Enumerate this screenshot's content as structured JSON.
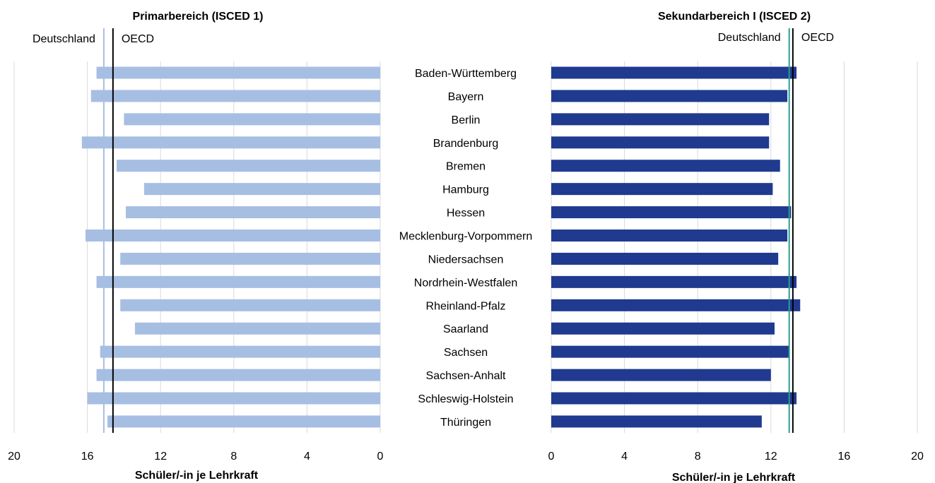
{
  "chart_data": [
    {
      "type": "bar",
      "orientation": "horizontal",
      "direction": "reversed",
      "title": "Primarbereich (ISCED 1)",
      "xlabel": "Schüler/-in je Lehrkraft",
      "xlim": [
        0,
        20
      ],
      "xticks": [
        "20",
        "16",
        "12",
        "8",
        "4",
        "0"
      ],
      "grid": true,
      "bar_color": "#a7bee3",
      "categories": [
        "Baden-Württemberg",
        "Bayern",
        "Berlin",
        "Brandenburg",
        "Bremen",
        "Hamburg",
        "Hessen",
        "Mecklenburg-Vorpommern",
        "Niedersachsen",
        "Nordrhein-Westfalen",
        "Rheinland-Pfalz",
        "Saarland",
        "Sachsen",
        "Sachsen-Anhalt",
        "Schleswig-Holstein",
        "Thüringen"
      ],
      "values": [
        15.5,
        15.8,
        14.0,
        16.3,
        14.4,
        12.9,
        13.9,
        16.1,
        14.2,
        15.5,
        14.2,
        13.4,
        15.3,
        15.5,
        16.0,
        14.9
      ],
      "reference_lines": [
        {
          "name": "Deutschland",
          "value": 15.1,
          "color": "#a7bee3"
        },
        {
          "name": "OECD",
          "value": 14.6,
          "color": "#000000"
        }
      ]
    },
    {
      "type": "bar",
      "orientation": "horizontal",
      "title": "Sekundarbereich I (ISCED 2)",
      "xlabel": "Schüler/-in je Lehrkraft",
      "xlim": [
        0,
        20
      ],
      "xticks": [
        "0",
        "4",
        "8",
        "12",
        "16",
        "20"
      ],
      "grid": true,
      "bar_color": "#1f3a8f",
      "categories": [
        "Baden-Württemberg",
        "Bayern",
        "Berlin",
        "Brandenburg",
        "Bremen",
        "Hamburg",
        "Hessen",
        "Mecklenburg-Vorpommern",
        "Niedersachsen",
        "Nordrhein-Westfalen",
        "Rheinland-Pfalz",
        "Saarland",
        "Sachsen",
        "Sachsen-Anhalt",
        "Schleswig-Holstein",
        "Thüringen"
      ],
      "values": [
        13.4,
        12.9,
        11.9,
        11.9,
        12.5,
        12.1,
        13.1,
        12.9,
        12.4,
        13.4,
        13.6,
        12.2,
        13.0,
        12.0,
        13.4,
        11.5
      ],
      "reference_lines": [
        {
          "name": "Deutschland",
          "value": 13.0,
          "color": "#2a9d8f"
        },
        {
          "name": "OECD",
          "value": 13.2,
          "color": "#000000"
        }
      ]
    }
  ]
}
